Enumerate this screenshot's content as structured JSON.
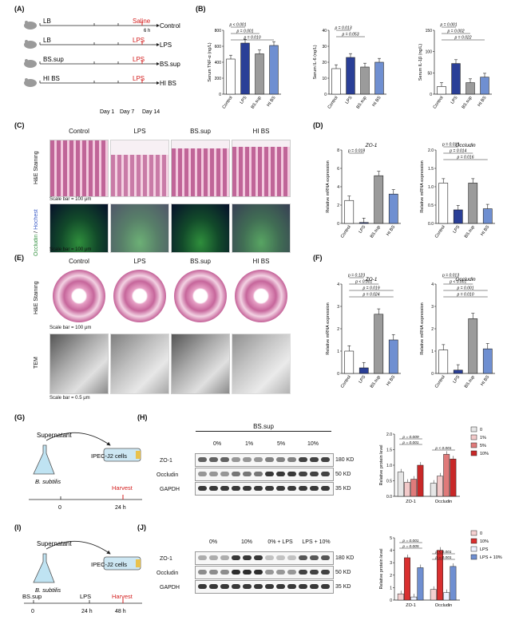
{
  "panels": {
    "A": "(A)",
    "B": "(B)",
    "C": "(C)",
    "D": "(D)",
    "E": "(E)",
    "F": "(F)",
    "G": "(G)",
    "H": "(H)",
    "I": "(I)",
    "J": "(J)"
  },
  "panel_a": {
    "rows": [
      {
        "left": "LB",
        "treat": "Saline",
        "end": "Control"
      },
      {
        "left": "LB",
        "treat": "LPS",
        "end": "LPS"
      },
      {
        "left": "BS.sup",
        "treat": "LPS",
        "end": "BS.sup"
      },
      {
        "left": "HI BS",
        "treat": "LPS",
        "end": "HI BS"
      }
    ],
    "note": "6 h",
    "days": [
      "Day 1",
      "Day 7",
      "Day 14"
    ]
  },
  "panel_b": {
    "charts": [
      {
        "ylabel": "Serum TNF-α (ng/L)",
        "yticks": [
          "0",
          "200",
          "400",
          "600",
          "800"
        ],
        "ylim": [
          0,
          800
        ],
        "categories": [
          "Control",
          "LPS",
          "BS.sup",
          "HI BS"
        ],
        "values": [
          440,
          640,
          505,
          610
        ],
        "pvals": [
          "p < 0.001",
          "p = 0.001",
          "p = 0.010"
        ]
      },
      {
        "ylabel": "Serum IL-6 (ng/L)",
        "yticks": [
          "0",
          "10",
          "20",
          "30",
          "40"
        ],
        "ylim": [
          0,
          40
        ],
        "categories": [
          "Control",
          "LPS",
          "BS.sup",
          "HI BS"
        ],
        "values": [
          16,
          23,
          17,
          20
        ],
        "pvals": [
          "p = 0.013",
          "p = 0.053"
        ]
      },
      {
        "ylabel": "Serum IL-1β (ng/L)",
        "yticks": [
          "0",
          "50",
          "100",
          "150"
        ],
        "ylim": [
          0,
          150
        ],
        "categories": [
          "Control",
          "LPS",
          "BS.sup",
          "HI BS"
        ],
        "values": [
          18,
          72,
          27,
          40
        ],
        "pvals": [
          "p = 0.001",
          "p = 0.002",
          "p = 0.022"
        ]
      }
    ]
  },
  "panel_c": {
    "groups": [
      "Control",
      "LPS",
      "BS.sup",
      "HI BS"
    ],
    "row1": "H&E Staining",
    "row2_a": "Occludin",
    "row2_sep": " / ",
    "row2_b": "Hochest",
    "scale": "Scale bar = 100 μm"
  },
  "panel_d": {
    "charts": [
      {
        "title": "ZO-1",
        "ylabel": "Relative mRNA expression",
        "yticks": [
          "0",
          "2",
          "4",
          "6",
          "8"
        ],
        "ylim": [
          0,
          8
        ],
        "categories": [
          "Control",
          "LPS",
          "BS.sup",
          "HI BS"
        ],
        "values": [
          2.5,
          0.1,
          5.2,
          3.2
        ],
        "pvals": [
          "p = 0.018"
        ]
      },
      {
        "title": "Occludin",
        "ylabel": "Relative mRNA expression",
        "yticks": [
          "0.0",
          "0.5",
          "1.0",
          "1.5",
          "2.0"
        ],
        "ylim": [
          0,
          2
        ],
        "categories": [
          "Control",
          "LPS",
          "BS.sup",
          "HI BS"
        ],
        "values": [
          1.1,
          0.37,
          1.1,
          0.4
        ],
        "pvals": [
          "p = 0.013",
          "p = 0.014",
          "p = 0.016"
        ]
      }
    ]
  },
  "panel_e": {
    "groups": [
      "Control",
      "LPS",
      "BS.sup",
      "HI BS"
    ],
    "row1": "H&E Staining",
    "row2": "TEM",
    "scale1": "Scale bar = 100 μm",
    "scale2": "Scale bar = 0.5 μm"
  },
  "panel_f": {
    "charts": [
      {
        "title": "ZO-1",
        "ylabel": "Relative mRNA expression",
        "yticks": [
          "0",
          "1",
          "2",
          "3",
          "4"
        ],
        "ylim": [
          0,
          4
        ],
        "categories": [
          "Control",
          "LPS",
          "BS.sup",
          "HI BS"
        ],
        "values": [
          1.0,
          0.25,
          2.65,
          1.5
        ],
        "pvals": [
          "p = 0.123",
          "p < 0.001",
          "p = 0.019",
          "p = 0.024"
        ]
      },
      {
        "title": "Occludin",
        "ylabel": "Relative mRNA expression",
        "yticks": [
          "0",
          "1",
          "2",
          "3",
          "4"
        ],
        "ylim": [
          0,
          4
        ],
        "categories": [
          "Control",
          "LPS",
          "BS.sup",
          "HI BS"
        ],
        "values": [
          1.05,
          0.15,
          2.45,
          1.1
        ],
        "pvals": [
          "p = 0.013",
          "p < 0.001",
          "p = 0.001",
          "p = 0.010"
        ]
      }
    ]
  },
  "panel_g": {
    "supernatant": "Supernatant",
    "organism": "B. subtilis",
    "cells": "IPEC-J2 cells",
    "harvest": "Harvest",
    "t0": "0",
    "t24": "24 h"
  },
  "panel_h": {
    "title": "BS.sup",
    "doses": [
      "0%",
      "1%",
      "5%",
      "10%"
    ],
    "proteins": [
      "ZO-1",
      "Occludin",
      "GAPDH"
    ],
    "kd": [
      "180 KD",
      "50 KD",
      "35 KD"
    ],
    "chart": {
      "ylabel": "Relative protein level",
      "yticks": [
        "0.0",
        "0.5",
        "1.0",
        "1.5",
        "2.0"
      ],
      "ylim": [
        0,
        2
      ],
      "categories": [
        "ZO-1",
        "Occludin"
      ],
      "series": [
        {
          "name": "0",
          "values": [
            0.78,
            0.42
          ]
        },
        {
          "name": "1%",
          "values": [
            0.45,
            0.65
          ]
        },
        {
          "name": "5%",
          "values": [
            0.55,
            1.35
          ]
        },
        {
          "name": "10%",
          "values": [
            1.0,
            1.2
          ]
        }
      ],
      "pvals": [
        "p = 0.009",
        "p = 0.001",
        "p < 0.001"
      ]
    }
  },
  "panel_i": {
    "supernatant": "Supernatant",
    "organism": "B. subtilis",
    "cells": "IPEC-J2 cells",
    "steps": [
      "BS.sup",
      "LPS",
      "Harvest"
    ],
    "times": [
      "0",
      "24 h",
      "48 h"
    ]
  },
  "panel_j": {
    "lanes": [
      "0%",
      "10%",
      "0% + LPS",
      "LPS + 10%"
    ],
    "proteins": [
      "ZO-1",
      "Occludin",
      "GAPDH"
    ],
    "kd": [
      "180 KD",
      "50 KD",
      "35 KD"
    ],
    "chart": {
      "ylabel": "Relative protein level",
      "yticks": [
        "0",
        "1",
        "2",
        "3",
        "4",
        "5"
      ],
      "ylim": [
        0,
        5
      ],
      "categories": [
        "ZO-1",
        "Occludin"
      ],
      "series": [
        {
          "name": "0",
          "values": [
            0.5,
            0.85
          ]
        },
        {
          "name": "10%",
          "values": [
            3.4,
            4.0
          ]
        },
        {
          "name": "LPS",
          "values": [
            0.25,
            0.6
          ]
        },
        {
          "name": "LPS + 10%",
          "values": [
            2.6,
            2.7
          ]
        }
      ],
      "pvals": [
        "p = 0.001",
        "p = 0.005",
        "p < 0.001",
        "p = 0.001"
      ]
    }
  },
  "chart_data": [
    {
      "type": "bar",
      "categories": [
        "Control",
        "LPS",
        "BS.sup",
        "HI BS"
      ],
      "values": [
        440,
        640,
        505,
        610
      ],
      "ylabel": "Serum TNF-α (ng/L)",
      "ylim": [
        0,
        800
      ]
    },
    {
      "type": "bar",
      "categories": [
        "Control",
        "LPS",
        "BS.sup",
        "HI BS"
      ],
      "values": [
        16,
        23,
        17,
        20
      ],
      "ylabel": "Serum IL-6 (ng/L)",
      "ylim": [
        0,
        40
      ]
    },
    {
      "type": "bar",
      "categories": [
        "Control",
        "LPS",
        "BS.sup",
        "HI BS"
      ],
      "values": [
        18,
        72,
        27,
        40
      ],
      "ylabel": "Serum IL-1β (ng/L)",
      "ylim": [
        0,
        150
      ]
    },
    {
      "type": "bar",
      "title": "ZO-1",
      "categories": [
        "Control",
        "LPS",
        "BS.sup",
        "HI BS"
      ],
      "values": [
        2.5,
        0.1,
        5.2,
        3.2
      ],
      "ylabel": "Relative mRNA expression",
      "ylim": [
        0,
        8
      ]
    },
    {
      "type": "bar",
      "title": "Occludin",
      "categories": [
        "Control",
        "LPS",
        "BS.sup",
        "HI BS"
      ],
      "values": [
        1.1,
        0.37,
        1.1,
        0.4
      ],
      "ylabel": "Relative mRNA expression",
      "ylim": [
        0,
        2
      ]
    },
    {
      "type": "bar",
      "title": "ZO-1",
      "categories": [
        "Control",
        "LPS",
        "BS.sup",
        "HI BS"
      ],
      "values": [
        1.0,
        0.25,
        2.65,
        1.5
      ],
      "ylabel": "Relative mRNA expression",
      "ylim": [
        0,
        4
      ]
    },
    {
      "type": "bar",
      "title": "Occludin",
      "categories": [
        "Control",
        "LPS",
        "BS.sup",
        "HI BS"
      ],
      "values": [
        1.05,
        0.15,
        2.45,
        1.1
      ],
      "ylabel": "Relative mRNA expression",
      "ylim": [
        0,
        4
      ]
    },
    {
      "type": "bar",
      "categories": [
        "ZO-1",
        "Occludin"
      ],
      "series": [
        {
          "name": "0",
          "values": [
            0.78,
            0.42
          ]
        },
        {
          "name": "1%",
          "values": [
            0.45,
            0.65
          ]
        },
        {
          "name": "5%",
          "values": [
            0.55,
            1.35
          ]
        },
        {
          "name": "10%",
          "values": [
            1.0,
            1.2
          ]
        }
      ],
      "ylabel": "Relative protein level",
      "ylim": [
        0,
        2
      ]
    },
    {
      "type": "bar",
      "categories": [
        "ZO-1",
        "Occludin"
      ],
      "series": [
        {
          "name": "0",
          "values": [
            0.5,
            0.85
          ]
        },
        {
          "name": "10%",
          "values": [
            3.4,
            4.0
          ]
        },
        {
          "name": "LPS",
          "values": [
            0.25,
            0.6
          ]
        },
        {
          "name": "LPS + 10%",
          "values": [
            2.6,
            2.7
          ]
        }
      ],
      "ylabel": "Relative protein level",
      "ylim": [
        0,
        5
      ]
    }
  ],
  "colors": {
    "control": "#ffffff",
    "lps": "#2a3f97",
    "bssup": "#9b9b9b",
    "hibs": "#6f8fd1",
    "h0": "#e6e6e6",
    "h1": "#f2c9c9",
    "h5": "#e07a7a",
    "h10": "#c82828",
    "j0": "#f4d0d0",
    "j10": "#d93030",
    "jlps": "#eef2ff",
    "jlps10": "#6f8fd1"
  }
}
